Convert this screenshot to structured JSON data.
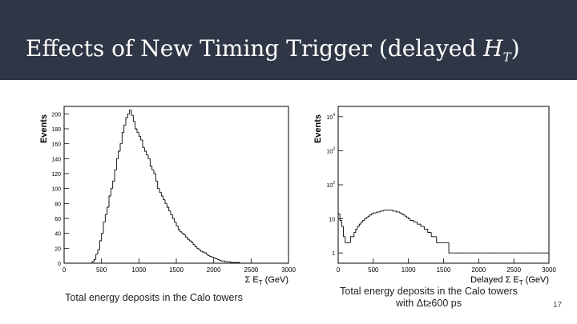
{
  "slide": {
    "title_prefix": "Effects of New Timing Trigger (delayed ",
    "title_var": "H",
    "title_sub": "T",
    "title_suffix": ")",
    "page_number": "17",
    "header_color": "#2f3747"
  },
  "captions": {
    "left": "Total energy deposits in the Calo towers",
    "right_line1": "Total energy deposits in the Calo towers",
    "right_line2": "with Δt≥600 ps"
  },
  "chart_data": [
    {
      "type": "bar",
      "style": "step-histogram",
      "ylabel": "Events",
      "xlabel": "Σ E",
      "xlabel_sub": "T",
      "xlabel_unit": " (GeV)",
      "xlim": [
        0,
        3000
      ],
      "ylim": [
        0,
        210
      ],
      "xticks": [
        "0",
        "500",
        "1000",
        "1500",
        "2000",
        "2500",
        "3000"
      ],
      "yticks": [
        "0",
        "20",
        "40",
        "60",
        "80",
        "100",
        "120",
        "140",
        "160",
        "180",
        "200"
      ],
      "grid": false,
      "bin_width": 25,
      "values": [
        0,
        0,
        0,
        0,
        0,
        0,
        0,
        0,
        0,
        0,
        0,
        0,
        0,
        0,
        0,
        2,
        5,
        12,
        18,
        30,
        40,
        55,
        65,
        75,
        90,
        100,
        110,
        125,
        140,
        150,
        160,
        175,
        185,
        195,
        200,
        205,
        198,
        190,
        180,
        175,
        170,
        165,
        155,
        150,
        145,
        140,
        130,
        125,
        120,
        110,
        100,
        95,
        90,
        85,
        80,
        75,
        70,
        65,
        60,
        55,
        50,
        45,
        42,
        40,
        38,
        35,
        32,
        30,
        28,
        25,
        22,
        20,
        18,
        16,
        15,
        14,
        12,
        10,
        9,
        8,
        7,
        6,
        5,
        4,
        3,
        3,
        2,
        2,
        2,
        1,
        1,
        1,
        1,
        1,
        0,
        0,
        0,
        0,
        0,
        0,
        0,
        0,
        0,
        0,
        0,
        0,
        0,
        0,
        0,
        0,
        0,
        0,
        0,
        0,
        0,
        0,
        0,
        0,
        0,
        0
      ]
    },
    {
      "type": "bar",
      "style": "step-histogram",
      "yscale": "log",
      "ylabel": "Events",
      "xlabel": "Delayed Σ E",
      "xlabel_sub": "T",
      "xlabel_unit": " (GeV)",
      "xlim": [
        0,
        3000
      ],
      "ylim": [
        0.5,
        20000
      ],
      "xticks": [
        "0",
        "500",
        "1000",
        "1500",
        "2000",
        "2500",
        "3000"
      ],
      "yticks": [
        {
          "value": 1,
          "base": "1",
          "exp": ""
        },
        {
          "value": 10,
          "base": "10",
          "exp": ""
        },
        {
          "value": 100,
          "base": "10",
          "exp": "2"
        },
        {
          "value": 1000,
          "base": "10",
          "exp": "3"
        },
        {
          "value": 10000,
          "base": "10",
          "exp": "4"
        }
      ],
      "grid": false,
      "bin_width": 25,
      "values": [
        14,
        9,
        6,
        3,
        2,
        2,
        2,
        3,
        3,
        4,
        5,
        6,
        7,
        8,
        9,
        10,
        11,
        12,
        13,
        14,
        15,
        15,
        16,
        16,
        17,
        17,
        18,
        18,
        18,
        18,
        18,
        17,
        17,
        16,
        16,
        15,
        14,
        13,
        12,
        11,
        10,
        9,
        9,
        8,
        8,
        7,
        7,
        6,
        6,
        5,
        5,
        4,
        4,
        3,
        3,
        3,
        2,
        2,
        2,
        2,
        2,
        2,
        2,
        1,
        1,
        1,
        1,
        1,
        1,
        1,
        1,
        1,
        1,
        1,
        1,
        1,
        1,
        1,
        1,
        1,
        1,
        1,
        1,
        1,
        1,
        1,
        1,
        1,
        1,
        1,
        1,
        1,
        1,
        1,
        1,
        1,
        1,
        1,
        1,
        1,
        1,
        1,
        1,
        1,
        1,
        1,
        1,
        1,
        1,
        1,
        1,
        1,
        1,
        1,
        1,
        1,
        1,
        1,
        1,
        1
      ]
    }
  ]
}
